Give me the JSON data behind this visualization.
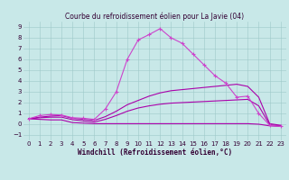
{
  "title": "Courbe du refroidissement éolien pour La Javie (04)",
  "xlabel": "Windchill (Refroidissement éolien,°C)",
  "xlim": [
    -0.5,
    23.5
  ],
  "ylim": [
    -1.5,
    9.5
  ],
  "xticks": [
    0,
    1,
    2,
    3,
    4,
    5,
    6,
    7,
    8,
    9,
    10,
    11,
    12,
    13,
    14,
    15,
    16,
    17,
    18,
    19,
    20,
    21,
    22,
    23
  ],
  "yticks": [
    -1,
    0,
    1,
    2,
    3,
    4,
    5,
    6,
    7,
    8,
    9
  ],
  "bg_color": "#c8e8e8",
  "line_color_main": "#aa00aa",
  "line_color_alt": "#cc44cc",
  "line1_x": [
    0,
    1,
    2,
    3,
    4,
    5,
    6,
    7,
    8,
    9,
    10,
    11,
    12,
    13,
    14,
    15,
    16,
    17,
    18,
    19,
    20,
    21,
    22,
    23
  ],
  "line1_y": [
    0.5,
    0.8,
    0.9,
    0.85,
    0.6,
    0.55,
    0.45,
    1.4,
    3.0,
    6.0,
    7.8,
    8.3,
    8.85,
    8.0,
    7.5,
    6.5,
    5.5,
    4.5,
    3.8,
    2.5,
    2.6,
    1.0,
    -0.1,
    -0.2
  ],
  "line2_x": [
    0,
    1,
    2,
    3,
    4,
    5,
    6,
    7,
    8,
    9,
    10,
    11,
    12,
    13,
    14,
    15,
    16,
    17,
    18,
    19,
    20,
    21,
    22,
    23
  ],
  "line2_y": [
    0.5,
    0.65,
    0.75,
    0.8,
    0.55,
    0.45,
    0.35,
    0.7,
    1.2,
    1.8,
    2.2,
    2.6,
    2.9,
    3.1,
    3.2,
    3.3,
    3.4,
    3.5,
    3.6,
    3.7,
    3.5,
    2.5,
    0.05,
    -0.1
  ],
  "line3_x": [
    0,
    1,
    2,
    3,
    4,
    5,
    6,
    7,
    8,
    9,
    10,
    11,
    12,
    13,
    14,
    15,
    16,
    17,
    18,
    19,
    20,
    21,
    22,
    23
  ],
  "line3_y": [
    0.5,
    0.6,
    0.65,
    0.65,
    0.42,
    0.3,
    0.2,
    0.45,
    0.8,
    1.2,
    1.5,
    1.7,
    1.85,
    1.95,
    2.0,
    2.05,
    2.1,
    2.15,
    2.2,
    2.25,
    2.3,
    1.7,
    -0.05,
    -0.15
  ],
  "line4_x": [
    0,
    1,
    2,
    3,
    4,
    5,
    6,
    7,
    8,
    9,
    10,
    11,
    12,
    13,
    14,
    15,
    16,
    17,
    18,
    19,
    20,
    21,
    22,
    23
  ],
  "line4_y": [
    0.5,
    0.45,
    0.4,
    0.4,
    0.15,
    0.1,
    0.05,
    0.05,
    0.05,
    0.05,
    0.05,
    0.05,
    0.05,
    0.05,
    0.05,
    0.05,
    0.05,
    0.05,
    0.05,
    0.05,
    0.05,
    0.0,
    -0.15,
    -0.2
  ]
}
